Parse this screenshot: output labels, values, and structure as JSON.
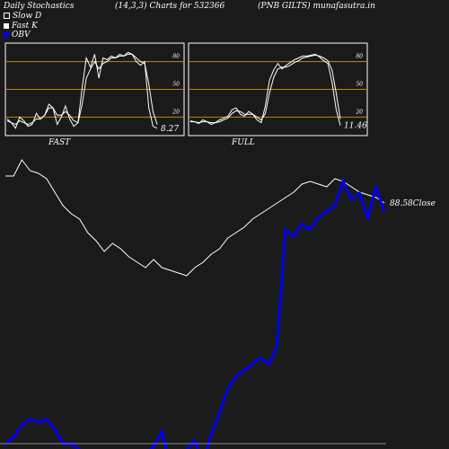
{
  "header": {
    "left": "Daily Stochastics",
    "center": "(14,3,3) Charts for 532366",
    "right": "(PNB GILTS) munafasutra.in"
  },
  "legend": [
    {
      "label": "Slow  D",
      "swatch": "slowd"
    },
    {
      "label": "Fast K",
      "swatch": "fastk"
    },
    {
      "label": "OBV",
      "swatch": "obv"
    }
  ],
  "colors": {
    "background": "#1a1a1a",
    "level_lines": "#c8820a",
    "stoch_lines": "#ffffff",
    "obv": "#0000ee",
    "close": "#ffffff"
  },
  "chart_data": [
    {
      "type": "line",
      "label": "FAST",
      "ylim": [
        0,
        100
      ],
      "levels": [
        20,
        50,
        80
      ],
      "tick_labels": [
        "80",
        "50",
        "20"
      ],
      "last_value_label": "8.27",
      "series": [
        {
          "name": "Fast K",
          "values": [
            18,
            14,
            8,
            20,
            16,
            10,
            12,
            24,
            18,
            22,
            34,
            30,
            12,
            20,
            32,
            18,
            10,
            14,
            52,
            84,
            74,
            88,
            62,
            84,
            82,
            86,
            84,
            88,
            86,
            90,
            88,
            80,
            76,
            80,
            30,
            10,
            8
          ]
        },
        {
          "name": "Slow  D",
          "values": [
            16,
            14,
            12,
            16,
            14,
            12,
            14,
            18,
            18,
            22,
            30,
            30,
            22,
            22,
            26,
            22,
            16,
            14,
            34,
            62,
            72,
            80,
            72,
            78,
            80,
            84,
            84,
            86,
            86,
            88,
            88,
            84,
            80,
            78,
            56,
            26,
            12
          ]
        }
      ]
    },
    {
      "type": "line",
      "label": "FULL",
      "ylim": [
        0,
        100
      ],
      "levels": [
        20,
        50,
        80
      ],
      "tick_labels": [
        "80",
        "50",
        "20"
      ],
      "last_value_label": "11.46",
      "series": [
        {
          "name": "Fast K",
          "values": [
            16,
            15,
            13,
            17,
            15,
            12,
            14,
            17,
            19,
            21,
            28,
            30,
            23,
            21,
            26,
            23,
            17,
            14,
            32,
            60,
            71,
            78,
            72,
            76,
            79,
            82,
            84,
            86,
            86,
            87,
            88,
            85,
            81,
            78,
            58,
            28,
            11
          ]
        },
        {
          "name": "Slow  D",
          "values": [
            15,
            15,
            14,
            15,
            15,
            14,
            14,
            15,
            17,
            19,
            24,
            27,
            26,
            23,
            23,
            23,
            20,
            17,
            24,
            46,
            63,
            72,
            74,
            74,
            76,
            79,
            81,
            84,
            85,
            86,
            87,
            86,
            84,
            81,
            71,
            46,
            18
          ]
        }
      ]
    },
    {
      "type": "line",
      "close_label": "88.58Close",
      "series": [
        {
          "name": "Close",
          "values": [
            98,
            98,
            104,
            100,
            99,
            97,
            92,
            87,
            84,
            82,
            77,
            74,
            70,
            73,
            71,
            68,
            66,
            64,
            67,
            64,
            63,
            62,
            61,
            64,
            66,
            69,
            71,
            75,
            77,
            79,
            82,
            84,
            86,
            88,
            90,
            92,
            95,
            96,
            95,
            94,
            97,
            96,
            94,
            92,
            91,
            90,
            88
          ]
        },
        {
          "name": "OBV",
          "values": [
            0,
            2,
            6,
            8,
            7,
            8,
            5,
            0,
            0,
            -2,
            -4,
            -6,
            -6,
            -5,
            -6,
            -6,
            -4,
            -3,
            -1,
            4,
            -7,
            -4,
            -2,
            1,
            -6,
            3,
            10,
            18,
            22,
            24,
            26,
            28,
            26,
            32,
            70,
            68,
            72,
            70,
            74,
            76,
            78,
            86,
            80,
            82,
            74,
            84,
            76
          ]
        }
      ]
    }
  ]
}
